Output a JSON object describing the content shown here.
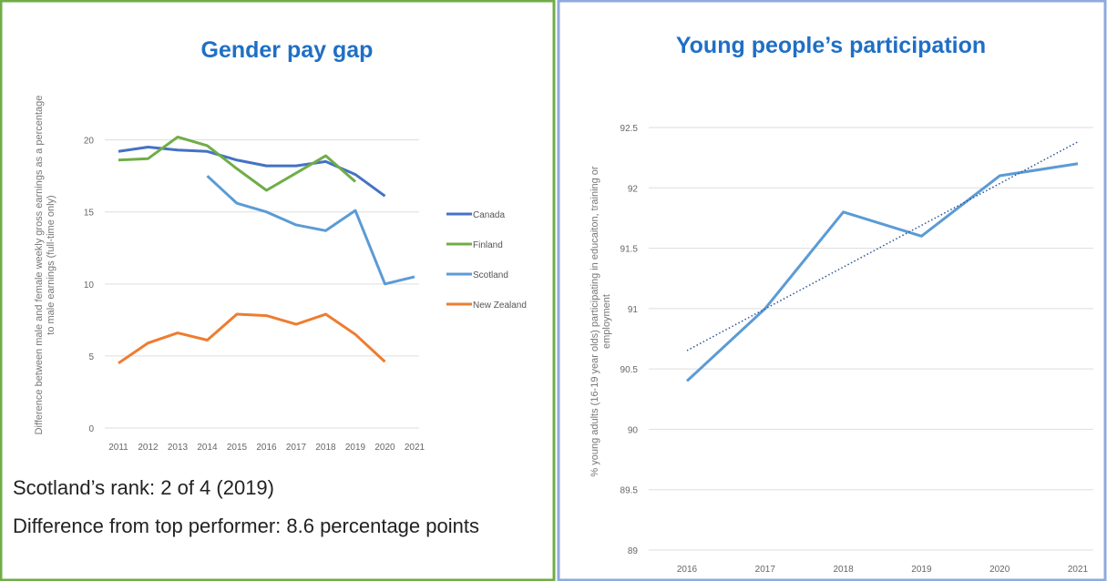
{
  "chart_data": [
    {
      "type": "line",
      "title": "Gender pay gap",
      "y_label": "Difference between male and female weekly gross earnings as a percentage to male earnings (full-time only)",
      "categories": [
        "2011",
        "2012",
        "2013",
        "2014",
        "2015",
        "2016",
        "2017",
        "2018",
        "2019",
        "2020",
        "2021"
      ],
      "series": [
        {
          "name": "Canada",
          "color": "#4472c4",
          "values": [
            19.2,
            19.5,
            19.3,
            19.2,
            18.6,
            18.2,
            18.2,
            18.5,
            17.6,
            16.1,
            null
          ]
        },
        {
          "name": "Finland",
          "color": "#70ad47",
          "values": [
            18.6,
            18.7,
            20.2,
            19.6,
            18.0,
            16.5,
            17.7,
            18.9,
            17.1,
            null,
            null
          ]
        },
        {
          "name": "Scotland",
          "color": "#5b9bd5",
          "values": [
            null,
            null,
            null,
            17.5,
            15.6,
            15.0,
            14.1,
            13.7,
            15.1,
            10.0,
            10.5
          ]
        },
        {
          "name": "New Zealand",
          "color": "#ed7d31",
          "values": [
            4.5,
            5.9,
            6.6,
            6.1,
            7.9,
            7.8,
            7.2,
            7.9,
            6.5,
            4.6,
            null
          ]
        }
      ],
      "ylim": [
        0,
        22
      ],
      "yticks": [
        0,
        5,
        10,
        15,
        20
      ],
      "grid": true,
      "legend": "right",
      "annotations": [
        "Scotland’s rank: 2 of 4 (2019)",
        "Difference from top performer: 8.6 percentage points"
      ]
    },
    {
      "type": "line",
      "title": "Young people’s participation",
      "y_label": "% young adults (16-19 year olds) participating in educaiton, training or employment",
      "categories": [
        "2016",
        "2017",
        "2018",
        "2019",
        "2020",
        "2021"
      ],
      "series": [
        {
          "name": "Participation",
          "color": "#5b9bd5",
          "values": [
            90.4,
            91.0,
            91.8,
            91.6,
            92.1,
            92.2
          ]
        }
      ],
      "ylim": [
        89,
        92.5
      ],
      "yticks": [
        89,
        89.5,
        90,
        90.5,
        91,
        91.5,
        92,
        92.5
      ],
      "grid": true,
      "legend": "none",
      "trendline": true
    }
  ]
}
